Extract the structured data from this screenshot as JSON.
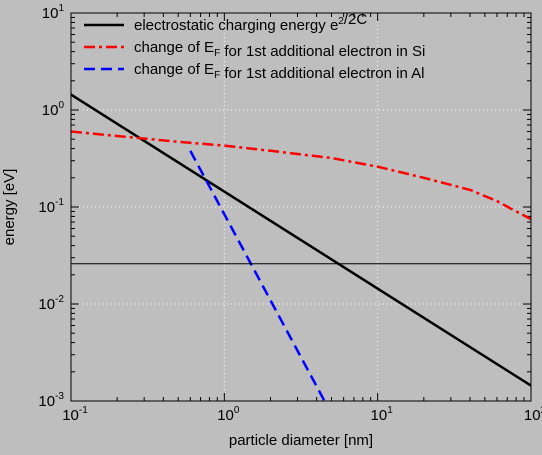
{
  "chart_data": {
    "type": "line",
    "xscale": "log",
    "yscale": "log",
    "xlabel": "particle diameter [nm]",
    "ylabel": "energy [eV]",
    "xlim": [
      0.1,
      100
    ],
    "ylim": [
      0.001,
      10
    ],
    "grid": true,
    "legend_position": "top-left",
    "colors": {
      "background": "#bebebe",
      "grid": "#ffffff",
      "axes": "#000000"
    },
    "x_ticks": [
      {
        "value": 0.1,
        "base": "10",
        "exp": "-1"
      },
      {
        "value": 1,
        "base": "10",
        "exp": "0"
      },
      {
        "value": 10,
        "base": "10",
        "exp": "1"
      },
      {
        "value": 100,
        "base": "10",
        "exp": "2"
      }
    ],
    "y_ticks": [
      {
        "value": 0.001,
        "base": "10",
        "exp": "-3"
      },
      {
        "value": 0.01,
        "base": "10",
        "exp": "-2"
      },
      {
        "value": 0.1,
        "base": "10",
        "exp": "-1"
      },
      {
        "value": 1,
        "base": "10",
        "exp": "0"
      },
      {
        "value": 10,
        "base": "10",
        "exp": "1"
      }
    ],
    "series": [
      {
        "name": "electrostatic charging energy e²/2C",
        "legend_parts": [
          {
            "text": "electrostatic charging energy e"
          },
          {
            "text": "2",
            "shift": "sup"
          },
          {
            "text": "/2C"
          }
        ],
        "color": "#000000",
        "dash": "solid",
        "x": [
          0.1,
          100
        ],
        "y": [
          1.44,
          0.00144
        ]
      },
      {
        "name": "change of EF for 1st additional electron in Si",
        "legend_parts": [
          {
            "text": "change of E"
          },
          {
            "text": "F",
            "shift": "sub"
          },
          {
            "text": " for 1st additional electron in Si"
          }
        ],
        "color": "#ff0000",
        "dash": "dashdot",
        "x": [
          0.1,
          0.2,
          0.5,
          1,
          2,
          5,
          10,
          20,
          40,
          60,
          80,
          100
        ],
        "y": [
          0.6,
          0.54,
          0.47,
          0.43,
          0.38,
          0.32,
          0.26,
          0.2,
          0.15,
          0.115,
          0.09,
          0.075
        ]
      },
      {
        "name": "change of EF for 1st additional electron in Al",
        "legend_parts": [
          {
            "text": "change of E"
          },
          {
            "text": "F",
            "shift": "sub"
          },
          {
            "text": " for 1st additional electron in Al"
          }
        ],
        "color": "#0000ff",
        "dash": "dashed",
        "x": [
          0.6,
          4.5
        ],
        "y": [
          0.38,
          0.001
        ]
      },
      {
        "color": "#000000",
        "dash": "solid-thin",
        "x": [
          0.1,
          100
        ],
        "y": [
          0.026,
          0.026
        ]
      }
    ]
  }
}
